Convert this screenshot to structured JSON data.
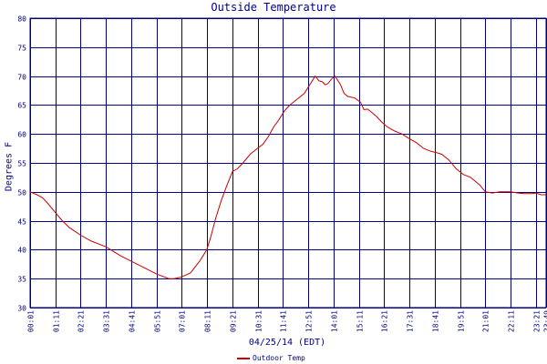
{
  "chart_data": {
    "type": "line",
    "title": "Outside Temperature",
    "xlabel": "04/25/14 (EDT)",
    "ylabel": "Degrees F",
    "ylim": [
      30,
      80
    ],
    "yticks": [
      30,
      35,
      40,
      45,
      50,
      55,
      60,
      65,
      70,
      75,
      80
    ],
    "x_tick_labels": [
      "00:01",
      "01:11",
      "02:21",
      "03:31",
      "04:41",
      "05:51",
      "07:01",
      "08:11",
      "09:21",
      "10:31",
      "11:41",
      "12:51",
      "14:01",
      "15:11",
      "16:21",
      "17:31",
      "18:41",
      "19:51",
      "21:01",
      "22:11",
      "23:21",
      "23:49"
    ],
    "x_tick_minutes": [
      1,
      71,
      141,
      211,
      281,
      351,
      421,
      491,
      561,
      631,
      701,
      771,
      841,
      911,
      981,
      1051,
      1121,
      1191,
      1261,
      1331,
      1401,
      1429
    ],
    "xlim_minutes": [
      1,
      1429
    ],
    "grid": true,
    "legend_position": "bottom-center",
    "series": [
      {
        "name": "Outdoor Temp",
        "color": "#cc0000",
        "x_minutes": [
          1,
          20,
          35,
          50,
          70,
          90,
          110,
          141,
          170,
          211,
          250,
          281,
          320,
          351,
          385,
          400,
          420,
          445,
          470,
          480,
          490,
          500,
          515,
          530,
          545,
          561,
          575,
          590,
          610,
          630,
          645,
          660,
          675,
          690,
          705,
          720,
          740,
          760,
          775,
          785,
          790,
          800,
          810,
          818,
          825,
          835,
          845,
          860,
          870,
          880,
          900,
          915,
          925,
          935,
          945,
          960,
          975,
          990,
          1010,
          1030,
          1050,
          1070,
          1090,
          1110,
          1125,
          1140,
          1160,
          1180,
          1200,
          1220,
          1245,
          1261,
          1280,
          1300,
          1320,
          1331,
          1350,
          1370,
          1390,
          1401,
          1415,
          1429
        ],
        "y_values": [
          50,
          49.5,
          49,
          48,
          46.5,
          45,
          43.8,
          42.5,
          41.5,
          40.5,
          39,
          38,
          36.8,
          35.8,
          35,
          35,
          35.3,
          36,
          38,
          39,
          40,
          42,
          45.5,
          48.5,
          51,
          53.5,
          54,
          55,
          56.5,
          57.5,
          58.2,
          59.5,
          61.2,
          62.5,
          64,
          65,
          66,
          67,
          68.5,
          69.5,
          70,
          69.2,
          69,
          68.5,
          68.7,
          69.5,
          70,
          68.5,
          67,
          66.5,
          66.2,
          65.5,
          64.2,
          64.3,
          63.8,
          63,
          62,
          61.2,
          60.5,
          60,
          59.2,
          58.5,
          57.5,
          57,
          56.8,
          56.5,
          55.5,
          54,
          53,
          52.5,
          51.2,
          50,
          49.8,
          50,
          50,
          50,
          49.8,
          49.7,
          49.7,
          49.8,
          49.5,
          49.5
        ]
      }
    ]
  }
}
